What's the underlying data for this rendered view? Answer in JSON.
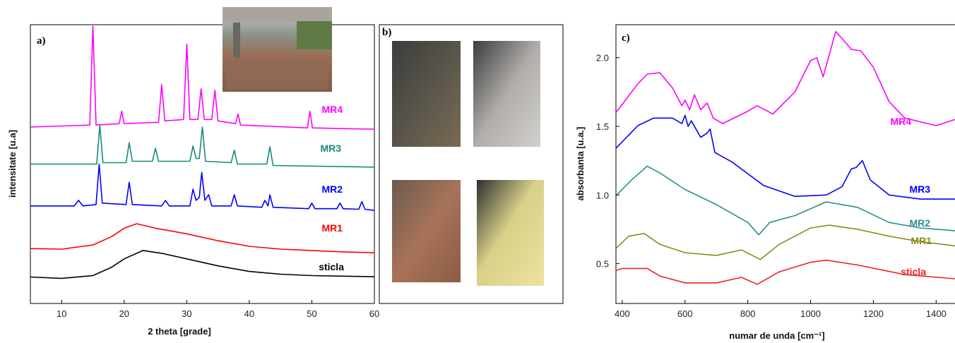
{
  "chart_data": [
    {
      "type": "line",
      "label": "a)",
      "x_label": "2 theta [grade]",
      "y_label": "intensitate [u.a]",
      "xlim": [
        5,
        60
      ],
      "xticks": [
        10,
        20,
        30,
        40,
        50,
        60
      ],
      "ylim": [
        0,
        100
      ],
      "series": [
        {
          "name": "MR4",
          "color": "#ff00ff",
          "x": [
            5,
            14.5,
            15,
            15.5,
            19.2,
            19.6,
            20,
            25.5,
            26,
            26.5,
            29.5,
            30,
            30.5,
            31.8,
            32.3,
            32.8,
            34,
            34.5,
            35,
            37.8,
            38.2,
            38.6,
            49.3,
            49.7,
            50.1,
            60
          ],
          "values": [
            63.3,
            64,
            99.5,
            64,
            64.5,
            69,
            64.5,
            65,
            78.5,
            65.5,
            66,
            93,
            66,
            66,
            77,
            66,
            66,
            76.5,
            65.5,
            64.5,
            68,
            64,
            63,
            69,
            63,
            62.5
          ]
        },
        {
          "name": "MR3",
          "color": "#17897c",
          "x": [
            5,
            15.6,
            16.1,
            16.6,
            20.3,
            20.8,
            21.3,
            24.5,
            25,
            25.5,
            30.5,
            31,
            31.5,
            32,
            32.5,
            33,
            37.1,
            37.6,
            38.1,
            42.8,
            43.3,
            43.8,
            60
          ],
          "values": [
            50,
            50,
            64,
            50.5,
            50.5,
            57.7,
            51,
            51,
            55.7,
            51,
            51,
            56.5,
            52,
            52,
            63.3,
            51,
            50.5,
            55,
            50,
            50,
            56.2,
            49.5,
            48.9
          ]
        },
        {
          "name": "MR2",
          "color": "#0000ff",
          "x": [
            5,
            12,
            12.7,
            13.4,
            15.5,
            16,
            16.5,
            20.3,
            20.8,
            21.3,
            26,
            26.6,
            27.2,
            30.5,
            31,
            31.5,
            32,
            32.4,
            32.9,
            33.5,
            34,
            37.1,
            37.6,
            38.1,
            42,
            42.5,
            43,
            43.3,
            43.8,
            49.5,
            50,
            50.5,
            54,
            54.5,
            55,
            57.5,
            58,
            58.5,
            60
          ],
          "values": [
            35,
            35,
            37,
            35,
            35.5,
            50,
            36,
            35.5,
            43.5,
            35.5,
            35,
            37,
            35,
            35,
            41,
            37,
            38,
            47,
            37,
            39,
            35,
            35,
            39,
            35,
            34.5,
            37,
            35,
            39,
            34.5,
            34,
            36,
            34,
            34,
            36,
            34,
            33.8,
            36.5,
            33.8,
            33.4
          ]
        },
        {
          "name": "MR1",
          "color": "#ff0000",
          "x": [
            5,
            10,
            15,
            18,
            20,
            22,
            25,
            30,
            35,
            40,
            45,
            50,
            55,
            60
          ],
          "values": [
            19.7,
            19.5,
            21,
            24,
            27,
            28.6,
            27,
            25,
            22.5,
            20.5,
            19.5,
            19,
            18.5,
            18.2
          ]
        },
        {
          "name": "sticla",
          "color": "#000000",
          "x": [
            5,
            10,
            15,
            18,
            20,
            23,
            26,
            30,
            35,
            40,
            45,
            50,
            55,
            60
          ],
          "values": [
            9.5,
            9,
            10,
            13,
            16,
            19,
            18,
            16,
            13.5,
            11.5,
            10.5,
            10,
            9.8,
            9.6
          ]
        }
      ]
    },
    {
      "type": "line",
      "label": "c)",
      "x_label": "numar de unda [cm⁻¹]",
      "y_label": "absorbanta [u.a.]",
      "xlim": [
        380,
        1460
      ],
      "xticks": [
        400,
        600,
        800,
        1000,
        1200,
        1400
      ],
      "ylim": [
        0.21,
        2.24
      ],
      "yticks": [
        0.5,
        {
          "value": 1,
          "label": "1.0"
        },
        1.5,
        {
          "value": 2,
          "label": "2.0"
        }
      ],
      "series": [
        {
          "name": "MR4",
          "color": "#ff00ff",
          "x": [
            380,
            450,
            480,
            520,
            560,
            590,
            600,
            615,
            630,
            650,
            670,
            690,
            720,
            800,
            830,
            880,
            950,
            1000,
            1020,
            1040,
            1080,
            1100,
            1130,
            1160,
            1200,
            1250,
            1300,
            1400,
            1460
          ],
          "values": [
            1.6,
            1.81,
            1.88,
            1.89,
            1.78,
            1.65,
            1.69,
            1.62,
            1.73,
            1.62,
            1.67,
            1.56,
            1.52,
            1.61,
            1.65,
            1.59,
            1.75,
            1.98,
            2.0,
            1.86,
            2.19,
            2.14,
            2.06,
            2.05,
            1.93,
            1.68,
            1.56,
            1.505,
            1.55
          ]
        },
        {
          "name": "MR3",
          "color": "#0000ff",
          "x": [
            380,
            450,
            500,
            560,
            590,
            600,
            610,
            620,
            650,
            670,
            680,
            695,
            750,
            850,
            950,
            1050,
            1100,
            1130,
            1145,
            1165,
            1190,
            1250,
            1350,
            1460
          ],
          "values": [
            1.34,
            1.505,
            1.56,
            1.56,
            1.52,
            1.58,
            1.5,
            1.54,
            1.42,
            1.45,
            1.48,
            1.31,
            1.24,
            1.07,
            0.99,
            1.0,
            1.06,
            1.19,
            1.2,
            1.25,
            1.11,
            1.0,
            0.97,
            0.97
          ]
        },
        {
          "name": "MR2",
          "color": "#2a8f8a",
          "x": [
            380,
            430,
            480,
            520,
            600,
            700,
            800,
            835,
            870,
            950,
            1050,
            1100,
            1150,
            1250,
            1350,
            1460
          ],
          "values": [
            0.995,
            1.11,
            1.21,
            1.16,
            1.04,
            0.93,
            0.8,
            0.71,
            0.8,
            0.85,
            0.95,
            0.93,
            0.91,
            0.8,
            0.76,
            0.74
          ]
        },
        {
          "name": "MR1",
          "color": "#8b8b1a",
          "x": [
            380,
            420,
            470,
            520,
            600,
            700,
            780,
            840,
            900,
            1000,
            1060,
            1150,
            1250,
            1350,
            1460
          ],
          "values": [
            0.61,
            0.7,
            0.72,
            0.64,
            0.58,
            0.56,
            0.6,
            0.53,
            0.64,
            0.76,
            0.78,
            0.75,
            0.7,
            0.66,
            0.63
          ]
        },
        {
          "name": "sticla",
          "color": "#ee2222",
          "x": [
            380,
            400,
            480,
            520,
            600,
            700,
            780,
            830,
            900,
            1000,
            1050,
            1150,
            1300,
            1460
          ],
          "values": [
            0.45,
            0.465,
            0.465,
            0.41,
            0.36,
            0.36,
            0.4,
            0.35,
            0.44,
            0.51,
            0.525,
            0.49,
            0.42,
            0.39
          ]
        }
      ]
    }
  ],
  "photos_panel": {
    "label": "b)"
  }
}
